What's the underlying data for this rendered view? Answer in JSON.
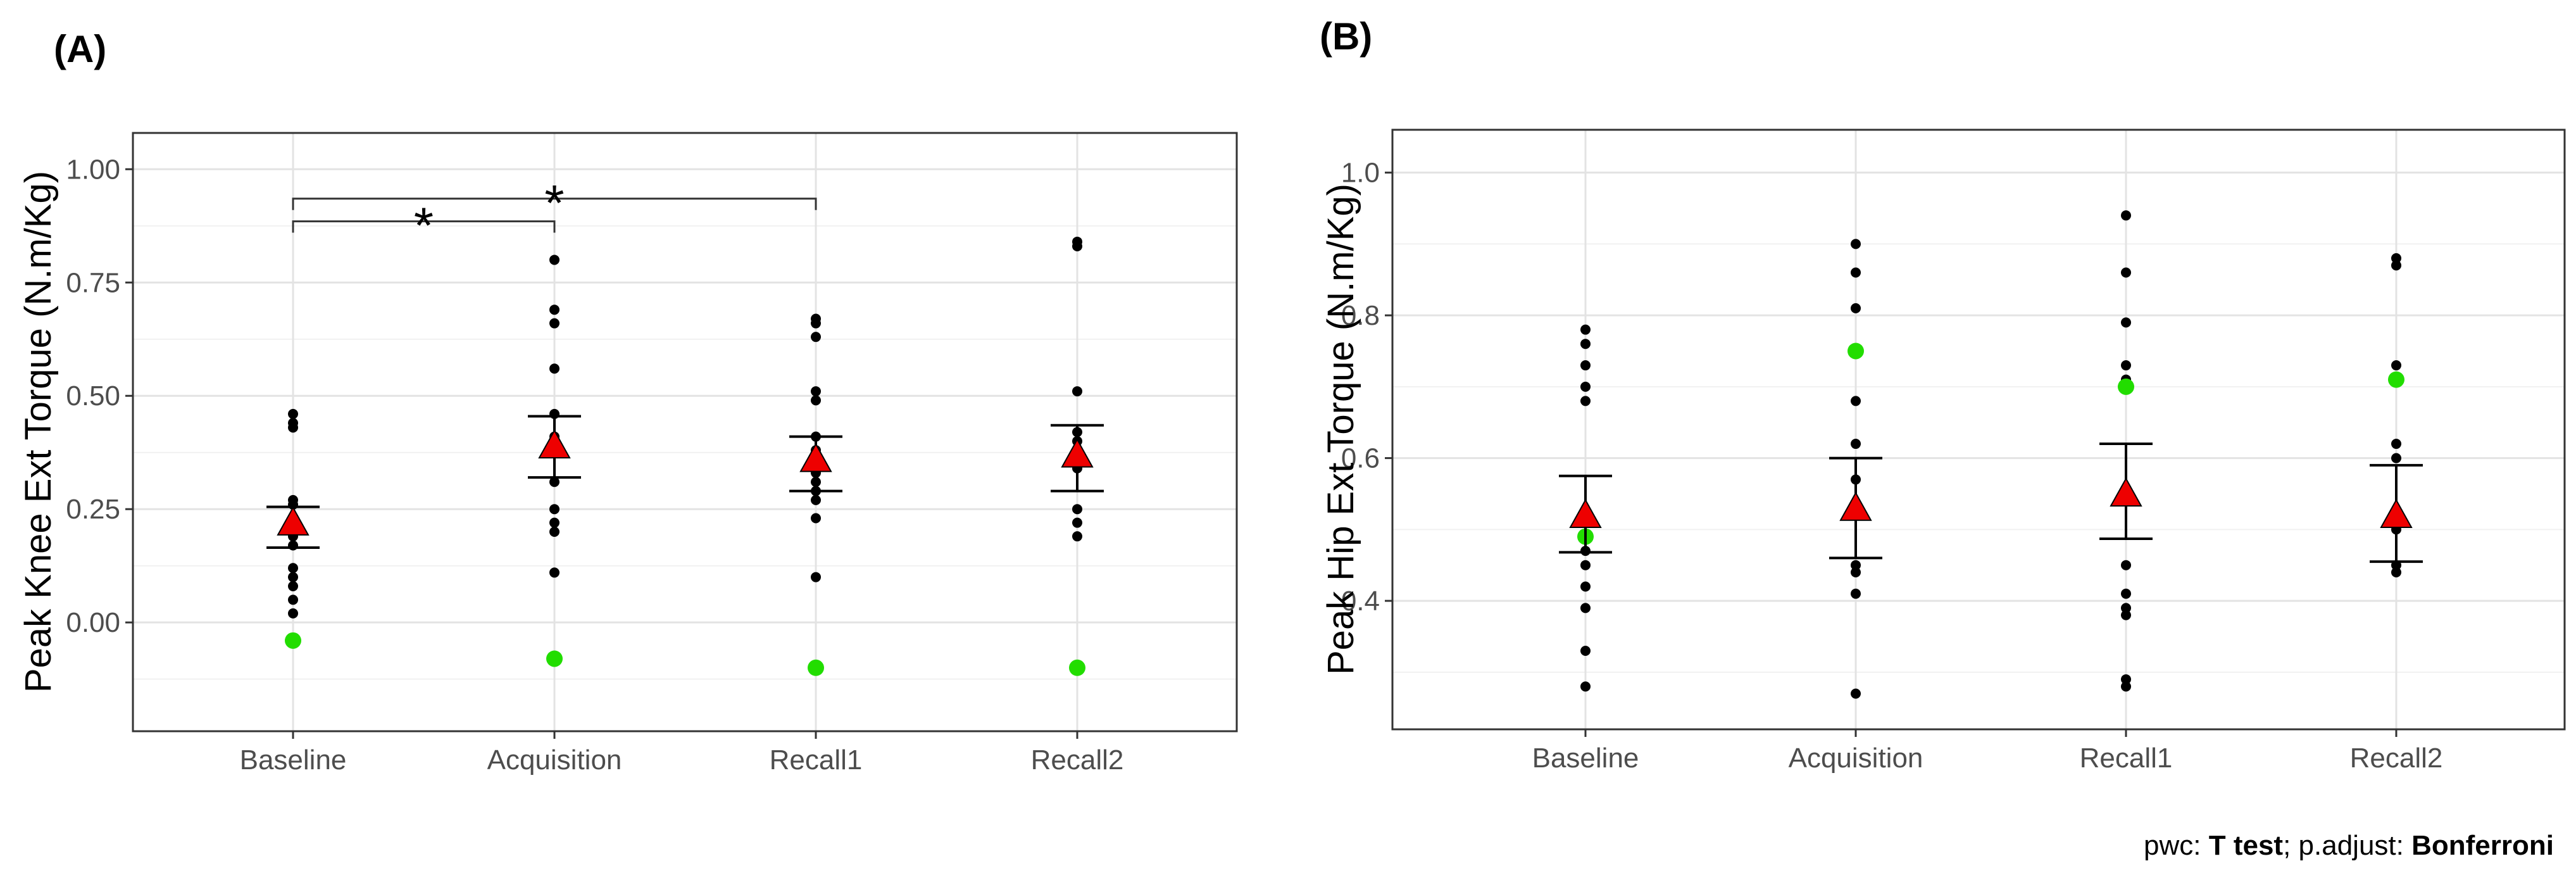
{
  "chart_data": [
    {
      "type": "scatter",
      "panel_label": "(A)",
      "title": "",
      "xlabel": "",
      "ylabel": "Peak Knee Ext Torque (N.m/Kg)",
      "categories": [
        "Baseline",
        "Acquisition",
        "Recall1",
        "Recall2"
      ],
      "ylim": [
        -0.24,
        1.08
      ],
      "yticks": [
        0.0,
        0.25,
        0.5,
        0.75,
        1.0
      ],
      "ytick_labels": [
        "0.00",
        "0.25",
        "0.50",
        "0.75",
        "1.00"
      ],
      "grid": true,
      "series": [
        {
          "name": "individual",
          "color": "#000000",
          "points": [
            [
              0.46,
              0.44,
              0.43,
              0.27,
              0.26,
              0.19,
              0.17,
              0.12,
              0.1,
              0.08,
              0.05,
              0.02
            ],
            [
              0.8,
              0.69,
              0.66,
              0.56,
              0.46,
              0.41,
              0.31,
              0.25,
              0.22,
              0.2,
              0.11
            ],
            [
              0.67,
              0.66,
              0.63,
              0.51,
              0.49,
              0.41,
              0.38,
              0.33,
              0.31,
              0.29,
              0.27,
              0.23,
              0.1
            ],
            [
              0.84,
              0.83,
              0.51,
              0.42,
              0.4,
              0.37,
              0.34,
              0.25,
              0.22,
              0.19
            ]
          ]
        },
        {
          "name": "highlighted",
          "color": "#22dd00",
          "values": [
            -0.04,
            -0.08,
            -0.1,
            -0.1
          ]
        }
      ],
      "mean": {
        "color": "#ee0000",
        "values": [
          0.22,
          0.39,
          0.36,
          0.37
        ]
      },
      "error_bars": [
        [
          0.165,
          0.255
        ],
        [
          0.32,
          0.455
        ],
        [
          0.29,
          0.41
        ],
        [
          0.29,
          0.435
        ]
      ],
      "significance": [
        {
          "from": "Baseline",
          "to": "Acquisition",
          "label": "*",
          "y": 0.885,
          "tip": 0.86
        },
        {
          "from": "Baseline",
          "to": "Recall1",
          "label": "*",
          "y": 0.935,
          "tip": 0.91
        }
      ]
    },
    {
      "type": "scatter",
      "panel_label": "(B)",
      "title": "",
      "xlabel": "",
      "ylabel": "Peak Hip Ext Torque (N.m/Kg)",
      "categories": [
        "Baseline",
        "Acquisition",
        "Recall1",
        "Recall2"
      ],
      "ylim": [
        0.22,
        1.06
      ],
      "yticks": [
        0.4,
        0.6,
        0.8,
        1.0
      ],
      "ytick_labels": [
        "0.4",
        "0.6",
        "0.8",
        "1.0"
      ],
      "grid": true,
      "series": [
        {
          "name": "individual",
          "color": "#000000",
          "points": [
            [
              0.78,
              0.76,
              0.73,
              0.7,
              0.68,
              0.47,
              0.45,
              0.42,
              0.39,
              0.33,
              0.28
            ],
            [
              0.9,
              0.86,
              0.81,
              0.68,
              0.62,
              0.57,
              0.45,
              0.44,
              0.41,
              0.27
            ],
            [
              0.94,
              0.86,
              0.79,
              0.73,
              0.71,
              0.45,
              0.41,
              0.39,
              0.38,
              0.29,
              0.28
            ],
            [
              0.88,
              0.87,
              0.73,
              0.62,
              0.6,
              0.51,
              0.5,
              0.45,
              0.44
            ]
          ]
        },
        {
          "name": "highlighted",
          "color": "#22dd00",
          "values": [
            0.49,
            0.75,
            0.7,
            0.71
          ]
        }
      ],
      "mean": {
        "color": "#ee0000",
        "values": [
          0.52,
          0.53,
          0.55,
          0.52
        ]
      },
      "error_bars": [
        [
          0.468,
          0.575
        ],
        [
          0.46,
          0.6
        ],
        [
          0.487,
          0.62
        ],
        [
          0.455,
          0.59
        ]
      ],
      "significance": []
    }
  ],
  "footnote": {
    "pwc_label": "pwc: ",
    "pwc_value": "T test",
    "separator": "; p.adjust: ",
    "adjust_value": "Bonferroni"
  }
}
